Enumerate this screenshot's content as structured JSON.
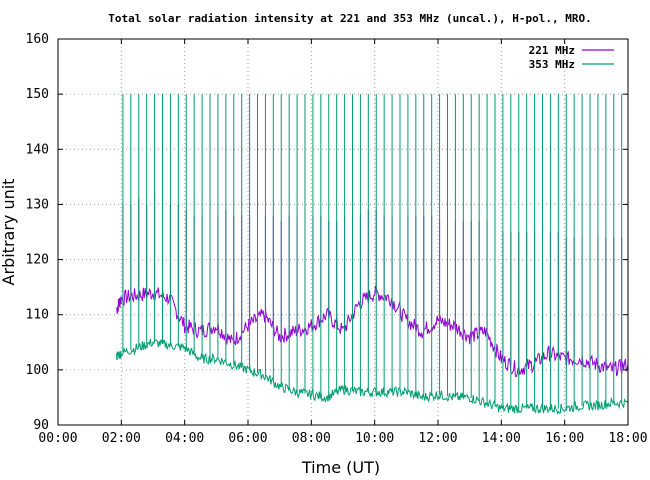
{
  "chart_data": {
    "type": "line",
    "title": "Total solar radiation intensity at 221 and 353 MHz (uncal.), H-pol., MRO.",
    "xlabel": "Time (UT)",
    "ylabel": "Arbitrary unit",
    "xlim": [
      0,
      18
    ],
    "ylim": [
      90,
      160
    ],
    "x_ticks": [
      "00:00",
      "02:00",
      "04:00",
      "06:00",
      "08:00",
      "10:00",
      "12:00",
      "14:00",
      "16:00",
      "18:00"
    ],
    "y_ticks": [
      90,
      100,
      110,
      120,
      130,
      140,
      150,
      160
    ],
    "grid": true,
    "legend_position": "top-right",
    "colors": {
      "221MHz": "#9400d3",
      "353MHz": "#009e73"
    },
    "series": [
      {
        "name": "221 MHz",
        "x": [
          1.85,
          2.0,
          2.5,
          3.0,
          3.5,
          4.0,
          4.5,
          5.0,
          5.5,
          6.0,
          6.5,
          7.0,
          7.5,
          8.0,
          8.5,
          9.0,
          9.5,
          10.0,
          10.5,
          11.0,
          11.5,
          12.0,
          12.5,
          13.0,
          13.5,
          14.0,
          14.5,
          15.0,
          15.5,
          16.0,
          16.5,
          17.0,
          17.5,
          18.0
        ],
        "values": [
          111,
          113,
          113.5,
          114,
          113,
          108,
          107,
          108,
          105,
          108,
          110,
          106,
          107,
          108,
          110,
          107,
          112,
          114,
          113,
          109,
          107,
          109,
          108,
          106,
          107,
          102,
          100,
          101,
          103,
          102,
          102,
          101,
          100,
          101
        ],
        "spikes_x": [
          2.05,
          2.3,
          2.55,
          2.8,
          3.05,
          3.3,
          3.55,
          3.8,
          4.05,
          4.3,
          4.55,
          4.8,
          5.05,
          5.3,
          5.55,
          5.8,
          6.05,
          6.3,
          6.55,
          6.8,
          7.05,
          7.3,
          7.55,
          7.8,
          8.05,
          8.3,
          8.55,
          8.8,
          9.05,
          9.3,
          9.55,
          9.8,
          10.05,
          10.3,
          10.55,
          10.8,
          11.05,
          11.3,
          11.55,
          11.8,
          12.05,
          12.3,
          12.55,
          12.8,
          13.05,
          13.3,
          13.55,
          13.8,
          14.05,
          14.3,
          14.55,
          14.8,
          15.05,
          15.3,
          15.55,
          15.8,
          16.05,
          16.3,
          16.55,
          16.8,
          17.05,
          17.3,
          17.55,
          17.8
        ],
        "spikes_top": [
          130,
          130,
          131,
          130,
          132,
          131,
          130,
          130,
          129,
          128,
          128,
          128,
          128,
          129,
          128,
          128,
          128,
          128,
          128,
          128,
          127,
          128,
          128,
          128,
          128,
          128,
          127,
          127,
          128,
          129,
          128,
          129,
          129,
          128,
          128,
          128,
          128,
          128,
          128,
          128,
          127,
          127,
          127,
          127,
          127,
          127,
          127,
          127,
          125,
          125,
          125,
          125,
          125,
          125,
          125,
          125,
          124,
          124,
          124,
          124,
          124,
          124,
          124,
          124
        ]
      },
      {
        "name": "353 MHz",
        "x": [
          1.85,
          2.0,
          2.5,
          3.0,
          3.5,
          4.0,
          4.5,
          5.0,
          5.5,
          6.0,
          6.5,
          7.0,
          7.5,
          8.0,
          8.5,
          9.0,
          9.5,
          10.0,
          10.5,
          11.0,
          11.5,
          12.0,
          12.5,
          13.0,
          13.5,
          14.0,
          14.5,
          15.0,
          15.5,
          16.0,
          16.5,
          17.0,
          17.5,
          18.0
        ],
        "values": [
          102.5,
          103,
          104,
          105,
          104.5,
          104,
          102,
          102,
          101,
          100,
          99,
          97,
          96,
          95.5,
          95,
          96.5,
          96,
          96,
          96,
          96,
          95,
          95.5,
          95,
          95,
          94,
          93,
          93,
          93,
          93,
          93,
          93.5,
          93.5,
          94,
          94
        ],
        "spikes_x": [
          2.05,
          2.3,
          2.55,
          2.8,
          3.05,
          3.3,
          3.55,
          3.8,
          4.05,
          4.3,
          4.55,
          4.8,
          5.05,
          5.3,
          5.55,
          5.8,
          6.05,
          6.3,
          6.55,
          6.8,
          7.05,
          7.3,
          7.55,
          7.8,
          8.05,
          8.3,
          8.55,
          8.8,
          9.05,
          9.3,
          9.55,
          9.8,
          10.05,
          10.3,
          10.55,
          10.8,
          11.05,
          11.3,
          11.55,
          11.8,
          12.05,
          12.3,
          12.55,
          12.8,
          13.05,
          13.3,
          13.55,
          13.8,
          14.05,
          14.3,
          14.55,
          14.8,
          15.05,
          15.3,
          15.55,
          15.8,
          16.05,
          16.3,
          16.55,
          16.8,
          17.05,
          17.3,
          17.55,
          17.8
        ],
        "spikes_top": [
          150,
          150,
          150,
          150,
          150,
          150,
          150,
          150,
          150,
          150,
          150,
          150,
          150,
          150,
          150,
          150,
          150,
          150,
          150,
          150,
          150,
          150,
          150,
          150,
          150,
          150,
          150,
          150,
          150,
          150,
          150,
          150,
          150,
          150,
          150,
          150,
          150,
          150,
          150,
          150,
          150,
          150,
          150,
          150,
          150,
          150,
          150,
          150,
          150,
          150,
          150,
          150,
          150,
          150,
          150,
          150,
          150,
          150,
          150,
          150,
          150,
          150,
          150,
          150
        ]
      }
    ]
  }
}
